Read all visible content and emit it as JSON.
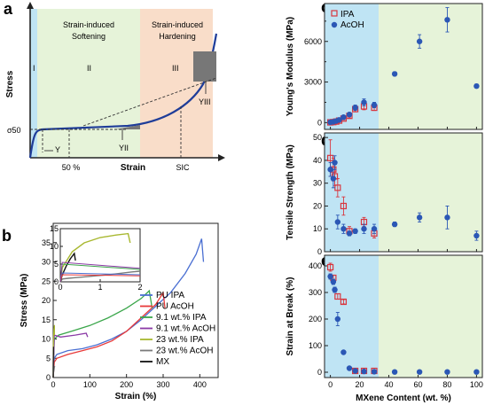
{
  "panels": {
    "a": "a",
    "b": "b",
    "c": "c",
    "d": "d",
    "e": "e"
  },
  "colors": {
    "ipa": "#d9363e",
    "acoh": "#2b57b5",
    "shade_blue": "#bfe4f4",
    "shade_green": "#e6f3d9",
    "shade_orange": "#f9ddc9",
    "pu_ipa": "#4a6fd2",
    "pu_acoh": "#e83a3a",
    "mx91_ipa": "#3aa64a",
    "mx91_acoh": "#8b3aa6",
    "mx23_ipa": "#a8b830",
    "mx23_acoh": "#7a7a7a",
    "mx": "#111111"
  },
  "chart_data": [
    {
      "type": "line",
      "panel": "a",
      "ylabel": "Stress",
      "xlabel": "Strain",
      "regions": [
        "I",
        "II",
        "III"
      ],
      "region_titles": [
        "Strain-induced\nSoftening",
        "Strain-induced\nHardening"
      ],
      "x_ticks": [
        "50 %",
        "SIC"
      ],
      "y_tick": "σ50",
      "annotations": [
        "Y",
        "YII",
        "YIII"
      ]
    },
    {
      "type": "line",
      "panel": "b",
      "xlabel": "Strain (%)",
      "ylabel": "Stress (MPa)",
      "xlim": [
        0,
        450
      ],
      "ylim": [
        0,
        40
      ],
      "xticks": [
        0,
        100,
        200,
        300,
        400
      ],
      "yticks": [
        0,
        5,
        10,
        15,
        20,
        25,
        30,
        35
      ],
      "series": [
        {
          "name": "PU IPA",
          "x": [
            0,
            3,
            10,
            40,
            80,
            120,
            160,
            200,
            240,
            280,
            320,
            360,
            390,
            405,
            410
          ],
          "y": [
            0,
            5,
            6,
            7,
            7.5,
            8.5,
            10,
            12,
            15,
            18.5,
            22,
            27,
            32,
            36,
            30
          ]
        },
        {
          "name": "PU AcOH",
          "x": [
            0,
            3,
            10,
            40,
            80,
            120,
            160,
            200,
            240,
            280,
            300,
            305
          ],
          "y": [
            0,
            4,
            5,
            6,
            7,
            8,
            9.5,
            12,
            15.5,
            19,
            22,
            18
          ]
        },
        {
          "name": "9.1 wt.% IPA",
          "x": [
            0,
            3,
            15,
            50,
            100,
            150,
            200,
            240,
            262,
            270
          ],
          "y": [
            0,
            10,
            11,
            12,
            13.5,
            15.5,
            18,
            20.5,
            22.5,
            18
          ]
        },
        {
          "name": "9.1 wt.% AcOH",
          "x": [
            0,
            3,
            20,
            60,
            90,
            94
          ],
          "y": [
            0,
            11,
            10.5,
            11,
            11.5,
            10.5
          ]
        },
        {
          "name": "23 wt.% IPA",
          "x": [
            0,
            0.05,
            0.3,
            0.6,
            1.0,
            1.4,
            1.7,
            1.75
          ],
          "y": [
            0,
            4,
            8.5,
            11,
            12.5,
            13.2,
            13.6,
            11
          ]
        },
        {
          "name": "23 wt.% AcOH",
          "x": [
            0,
            0.05,
            0.2,
            0.4,
            0.6,
            0.9,
            1.2,
            1.5,
            1.8,
            2.0
          ],
          "y": [
            0,
            0.8,
            1.0,
            1.2,
            1.4,
            1.7,
            2.0,
            2.4,
            2.8,
            3.0
          ]
        },
        {
          "name": "MX",
          "x": [
            0,
            0.05,
            0.15,
            0.25,
            0.35,
            0.38
          ],
          "y": [
            0,
            2,
            4.5,
            6.5,
            8,
            6
          ]
        }
      ],
      "inset": {
        "xlim": [
          0,
          2
        ],
        "ylim": [
          0,
          15
        ],
        "xticks": [
          0,
          1,
          2
        ],
        "yticks": [
          0,
          5,
          10,
          15
        ]
      }
    },
    {
      "type": "scatter",
      "panel": "c",
      "ylabel": "Young's Modulus (MPa)",
      "ylim": [
        -500,
        8800
      ],
      "yticks": [
        0,
        3000,
        6000
      ],
      "yticks_minor": [
        1500,
        4500,
        7500
      ],
      "legend": [
        "IPA",
        "AcOH"
      ],
      "series": [
        {
          "name": "IPA",
          "x": [
            0,
            2,
            4,
            6,
            9,
            13,
            17,
            23,
            30
          ],
          "y": [
            20,
            40,
            80,
            150,
            300,
            500,
            1000,
            1200,
            1100
          ],
          "err": [
            20,
            30,
            40,
            60,
            100,
            150,
            200,
            250,
            200
          ]
        },
        {
          "name": "AcOH",
          "x": [
            0,
            2,
            4,
            6,
            9,
            13,
            17,
            23,
            30,
            44,
            61,
            80,
            100
          ],
          "y": [
            30,
            60,
            120,
            200,
            400,
            600,
            1100,
            1500,
            1300,
            3600,
            6000,
            7600,
            2700
          ],
          "err": [
            20,
            30,
            40,
            60,
            100,
            150,
            200,
            250,
            200,
            150,
            500,
            900,
            150
          ]
        }
      ]
    },
    {
      "type": "scatter",
      "panel": "d",
      "ylabel": "Tensile Strength (MPa)",
      "ylim": [
        0,
        52
      ],
      "yticks": [
        0,
        10,
        20,
        30,
        40,
        50
      ],
      "series": [
        {
          "name": "IPA",
          "x": [
            0,
            2,
            3,
            5,
            9,
            13,
            23,
            30
          ],
          "y": [
            41,
            36,
            33,
            28,
            20,
            9,
            13,
            8
          ],
          "err": [
            8,
            5,
            4,
            4,
            4,
            2,
            2,
            2
          ]
        },
        {
          "name": "AcOH",
          "x": [
            0,
            2,
            3,
            5,
            9,
            13,
            17,
            23,
            30,
            44,
            61,
            80,
            100
          ],
          "y": [
            36,
            32,
            39,
            13,
            10,
            8,
            9,
            10,
            10,
            12,
            15,
            15,
            7
          ],
          "err": [
            3,
            4,
            3,
            3,
            2,
            1,
            1,
            2,
            2,
            1,
            2,
            5,
            2
          ]
        }
      ]
    },
    {
      "type": "scatter",
      "panel": "e",
      "xlabel": "MXene Content (wt. %)",
      "ylabel": "Strain at Break (%)",
      "xlim": [
        -4,
        104
      ],
      "ylim": [
        -20,
        440
      ],
      "xticks": [
        0,
        20,
        40,
        60,
        80,
        100
      ],
      "yticks": [
        0,
        100,
        200,
        300,
        400
      ],
      "series": [
        {
          "name": "IPA",
          "x": [
            0,
            2,
            5,
            9,
            17,
            23,
            30
          ],
          "y": [
            395,
            355,
            285,
            265,
            5,
            5,
            5
          ],
          "err": [
            15,
            10,
            10,
            8,
            2,
            2,
            2
          ]
        },
        {
          "name": "AcOH",
          "x": [
            0,
            2,
            3,
            5,
            9,
            13,
            17,
            23,
            30,
            44,
            61,
            80,
            100
          ],
          "y": [
            360,
            340,
            310,
            200,
            75,
            15,
            5,
            3,
            2,
            1,
            1,
            1,
            1
          ],
          "err": [
            10,
            10,
            10,
            25,
            5,
            3,
            2,
            1,
            1,
            0,
            0,
            0,
            0
          ]
        }
      ]
    }
  ]
}
